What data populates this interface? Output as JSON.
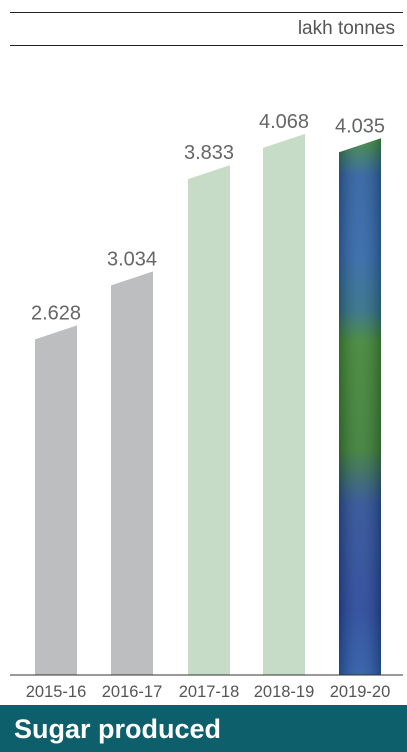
{
  "unit_label": "lakh tonnes",
  "caption": "Sugar produced",
  "chart_data": {
    "type": "bar",
    "categories": [
      "2015-16",
      "2016-17",
      "2017-18",
      "2018-19",
      "2019-20"
    ],
    "values": [
      2.628,
      3.034,
      3.833,
      4.068,
      4.035
    ],
    "value_labels": [
      "2.628",
      "3.034",
      "3.833",
      "4.068",
      "4.035"
    ],
    "ylim": [
      0,
      4.3
    ],
    "bar_colors": [
      "#bdbebf",
      "#bdbebf",
      "#c7dcc6",
      "#c7dcc6",
      "textured-blue-green"
    ],
    "title": "",
    "xlabel": "",
    "ylabel": "lakh tonnes",
    "grid": false
  }
}
